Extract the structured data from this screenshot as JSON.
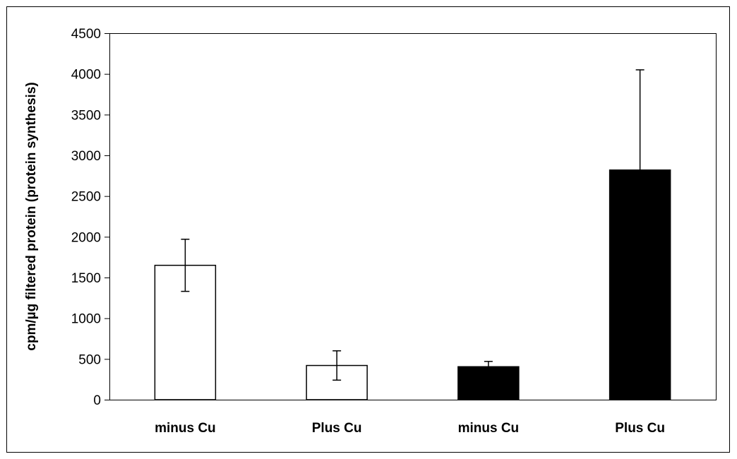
{
  "chart_data": {
    "type": "bar",
    "title": "",
    "xlabel": "",
    "ylabel": "cpm/µg filtered protein (protein synthesis)",
    "ylim": [
      0,
      4500
    ],
    "yticks": [
      0,
      500,
      1000,
      1500,
      2000,
      2500,
      3000,
      3500,
      4000,
      4500
    ],
    "grid": false,
    "legend": "none",
    "categories": [
      "minus Cu",
      "Plus Cu",
      "minus Cu",
      "Plus Cu"
    ],
    "values": [
      1650,
      420,
      405,
      2820
    ],
    "error_up": [
      320,
      180,
      65,
      1230
    ],
    "error_down": [
      320,
      180,
      65,
      1230
    ],
    "bar_colors": [
      "#ffffff",
      "#ffffff",
      "#000000",
      "#000000"
    ]
  }
}
